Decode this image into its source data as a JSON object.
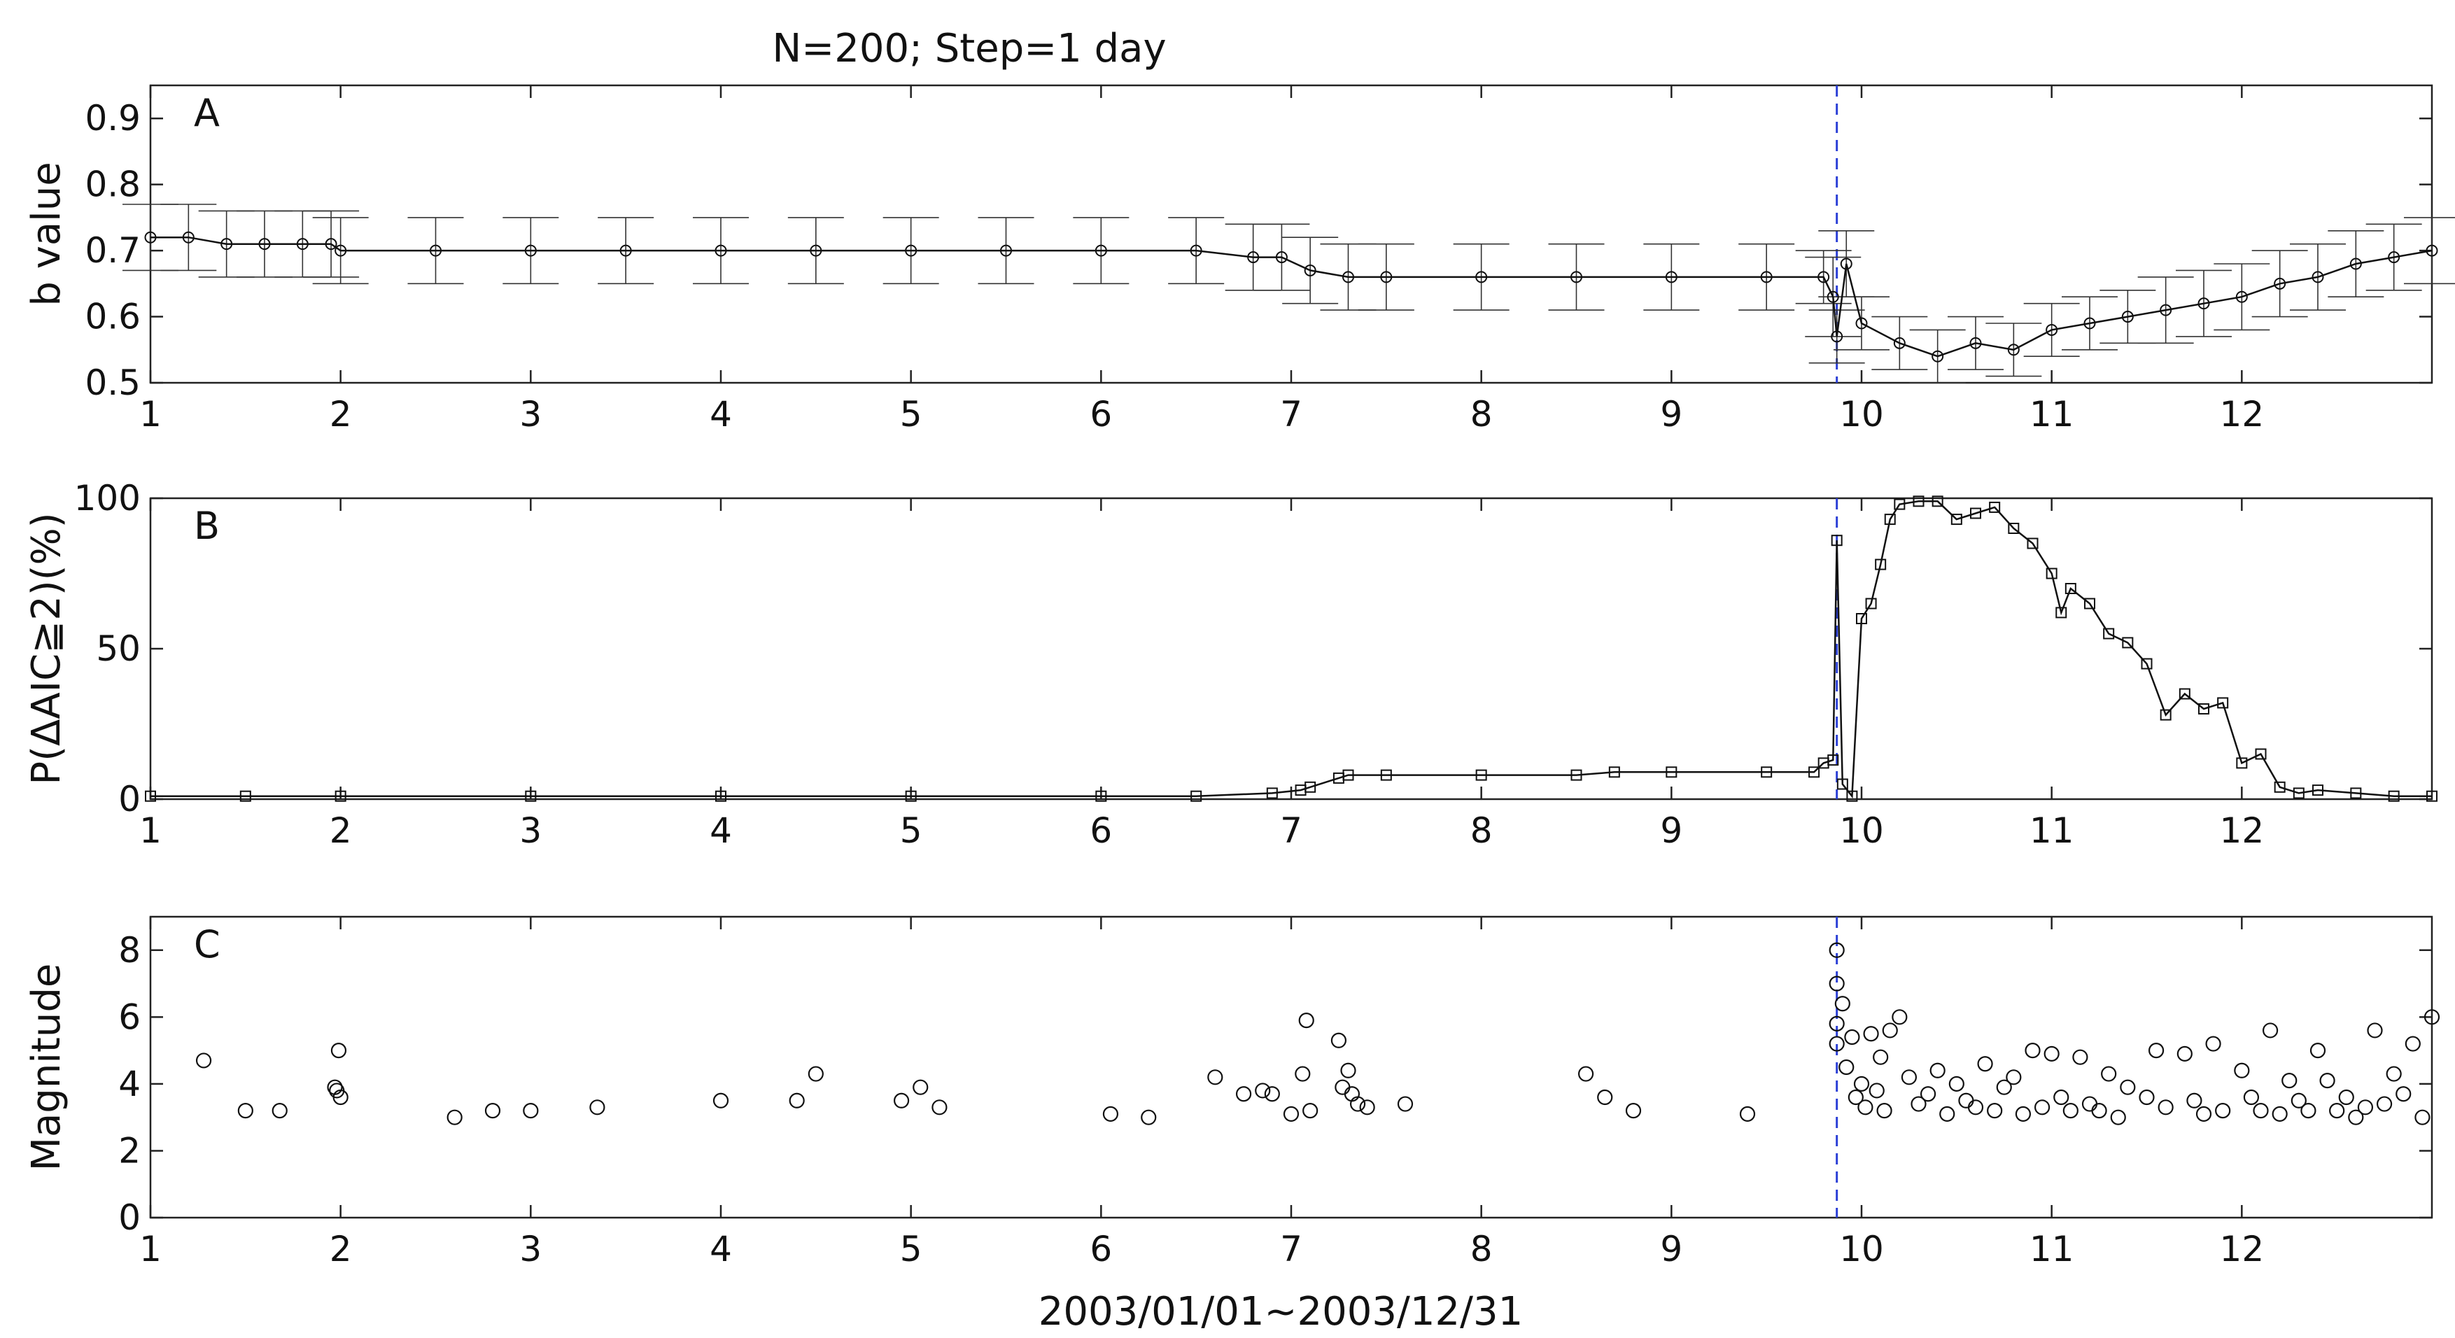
{
  "title": "N=200; Step=1 day",
  "xlabel": "2003/01/01~2003/12/31",
  "event_line_color": "#2b3fd6",
  "chart_data": [
    {
      "id": "A",
      "type": "line",
      "panel_label": "A",
      "ylabel": "b value",
      "xlim": [
        1,
        13
      ],
      "ylim": [
        0.5,
        0.95
      ],
      "xticks": [
        "1",
        "2",
        "3",
        "4",
        "5",
        "6",
        "7",
        "8",
        "9",
        "10",
        "11",
        "12"
      ],
      "yticks": [
        "0.5",
        "0.6",
        "0.7",
        "0.8",
        "0.9"
      ],
      "event_x": 9.87,
      "series": [
        {
          "name": "b value",
          "marker": "circle",
          "error_bars": true,
          "x": [
            1.0,
            1.2,
            1.4,
            1.6,
            1.8,
            1.95,
            2.0,
            2.5,
            3.0,
            3.5,
            4.0,
            4.5,
            5.0,
            5.5,
            6.0,
            6.5,
            6.8,
            6.95,
            7.1,
            7.3,
            7.5,
            8.0,
            8.5,
            9.0,
            9.5,
            9.8,
            9.85,
            9.87,
            9.92,
            10.0,
            10.2,
            10.4,
            10.6,
            10.8,
            11.0,
            11.2,
            11.4,
            11.6,
            11.8,
            12.0,
            12.2,
            12.4,
            12.6,
            12.8,
            13.0
          ],
          "y": [
            0.72,
            0.72,
            0.71,
            0.71,
            0.71,
            0.71,
            0.7,
            0.7,
            0.7,
            0.7,
            0.7,
            0.7,
            0.7,
            0.7,
            0.7,
            0.7,
            0.69,
            0.69,
            0.67,
            0.66,
            0.66,
            0.66,
            0.66,
            0.66,
            0.66,
            0.66,
            0.63,
            0.57,
            0.68,
            0.59,
            0.56,
            0.54,
            0.56,
            0.55,
            0.58,
            0.59,
            0.6,
            0.61,
            0.62,
            0.63,
            0.65,
            0.66,
            0.68,
            0.69,
            0.7
          ],
          "error": [
            0.05,
            0.05,
            0.05,
            0.05,
            0.05,
            0.05,
            0.05,
            0.05,
            0.05,
            0.05,
            0.05,
            0.05,
            0.05,
            0.05,
            0.05,
            0.05,
            0.05,
            0.05,
            0.05,
            0.05,
            0.05,
            0.05,
            0.05,
            0.05,
            0.05,
            0.04,
            0.06,
            0.04,
            0.05,
            0.04,
            0.04,
            0.04,
            0.04,
            0.04,
            0.04,
            0.04,
            0.04,
            0.05,
            0.05,
            0.05,
            0.05,
            0.05,
            0.05,
            0.05,
            0.05
          ]
        }
      ]
    },
    {
      "id": "B",
      "type": "line",
      "panel_label": "B",
      "ylabel": "P(ΔAIC≧2)(%)",
      "xlim": [
        1,
        13
      ],
      "ylim": [
        0,
        100
      ],
      "xticks": [
        "1",
        "2",
        "3",
        "4",
        "5",
        "6",
        "7",
        "8",
        "9",
        "10",
        "11",
        "12"
      ],
      "yticks": [
        "0",
        "50",
        "100"
      ],
      "event_x": 9.87,
      "series": [
        {
          "name": "P(ΔAIC≧2)",
          "marker": "square",
          "x": [
            1.0,
            1.5,
            2.0,
            3.0,
            4.0,
            5.0,
            6.0,
            6.5,
            6.9,
            7.05,
            7.1,
            7.25,
            7.3,
            7.5,
            8.0,
            8.5,
            8.7,
            9.0,
            9.5,
            9.75,
            9.8,
            9.85,
            9.87,
            9.9,
            9.95,
            10.0,
            10.05,
            10.1,
            10.15,
            10.2,
            10.3,
            10.4,
            10.5,
            10.6,
            10.7,
            10.8,
            10.9,
            11.0,
            11.05,
            11.1,
            11.2,
            11.3,
            11.4,
            11.5,
            11.6,
            11.7,
            11.8,
            11.9,
            12.0,
            12.1,
            12.2,
            12.3,
            12.4,
            12.6,
            12.8,
            13.0
          ],
          "y": [
            1,
            1,
            1,
            1,
            1,
            1,
            1,
            1,
            2,
            3,
            4,
            7,
            8,
            8,
            8,
            8,
            9,
            9,
            9,
            9,
            12,
            13,
            86,
            5,
            1,
            60,
            65,
            78,
            93,
            98,
            99,
            99,
            93,
            95,
            97,
            90,
            85,
            75,
            62,
            70,
            65,
            55,
            52,
            45,
            28,
            35,
            30,
            32,
            12,
            15,
            4,
            2,
            3,
            2,
            1,
            1
          ]
        }
      ]
    },
    {
      "id": "C",
      "type": "scatter",
      "panel_label": "C",
      "ylabel": "Magnitude",
      "xlim": [
        1,
        13
      ],
      "ylim": [
        0,
        9
      ],
      "xticks": [
        "1",
        "2",
        "3",
        "4",
        "5",
        "6",
        "7",
        "8",
        "9",
        "10",
        "11",
        "12"
      ],
      "yticks": [
        "0",
        "2",
        "4",
        "6",
        "8"
      ],
      "event_x": 9.87,
      "series": [
        {
          "name": "events",
          "marker": "circle",
          "x": [
            1.28,
            1.5,
            1.68,
            1.98,
            1.99,
            2.0,
            1.97,
            2.6,
            2.8,
            3.0,
            3.35,
            4.0,
            4.4,
            4.5,
            4.95,
            5.05,
            5.15,
            6.05,
            6.25,
            6.6,
            6.75,
            6.85,
            6.9,
            7.0,
            7.06,
            7.08,
            7.1,
            7.25,
            7.27,
            7.3,
            7.32,
            7.35,
            7.4,
            7.6,
            8.55,
            8.65,
            8.8,
            9.4,
            9.87,
            9.87,
            9.87,
            9.87,
            9.9,
            9.92,
            9.95,
            9.97,
            10.0,
            10.02,
            10.05,
            10.08,
            10.1,
            10.12,
            10.15,
            10.2,
            10.25,
            10.3,
            10.35,
            10.4,
            10.45,
            10.5,
            10.55,
            10.6,
            10.65,
            10.7,
            10.75,
            10.8,
            10.85,
            10.9,
            10.95,
            11.0,
            11.05,
            11.1,
            11.15,
            11.2,
            11.25,
            11.3,
            11.35,
            11.4,
            11.5,
            11.55,
            11.6,
            11.7,
            11.75,
            11.8,
            11.85,
            11.9,
            12.0,
            12.05,
            12.1,
            12.15,
            12.2,
            12.25,
            12.3,
            12.35,
            12.4,
            12.45,
            12.5,
            12.55,
            12.6,
            12.65,
            12.7,
            12.75,
            12.8,
            12.85,
            12.9,
            12.95,
            13.0
          ],
          "y": [
            4.7,
            3.2,
            3.2,
            3.8,
            5.0,
            3.6,
            3.9,
            3.0,
            3.2,
            3.2,
            3.3,
            3.5,
            3.5,
            4.3,
            3.5,
            3.9,
            3.3,
            3.1,
            3.0,
            4.2,
            3.7,
            3.8,
            3.7,
            3.1,
            4.3,
            5.9,
            3.2,
            5.3,
            3.9,
            4.4,
            3.7,
            3.4,
            3.3,
            3.4,
            4.3,
            3.6,
            3.2,
            3.1,
            8.0,
            7.0,
            5.8,
            5.2,
            6.4,
            4.5,
            5.4,
            3.6,
            4.0,
            3.3,
            5.5,
            3.8,
            4.8,
            3.2,
            5.6,
            6.0,
            4.2,
            3.4,
            3.7,
            4.4,
            3.1,
            4.0,
            3.5,
            3.3,
            4.6,
            3.2,
            3.9,
            4.2,
            3.1,
            5.0,
            3.3,
            4.9,
            3.6,
            3.2,
            4.8,
            3.4,
            3.2,
            4.3,
            3.0,
            3.9,
            3.6,
            5.0,
            3.3,
            4.9,
            3.5,
            3.1,
            5.2,
            3.2,
            4.4,
            3.6,
            3.2,
            5.6,
            3.1,
            4.1,
            3.5,
            3.2,
            5.0,
            4.1,
            3.2,
            3.6,
            3.0,
            3.3,
            5.6,
            3.4,
            4.3,
            3.7,
            5.2,
            3.0,
            6.0
          ]
        }
      ]
    }
  ]
}
